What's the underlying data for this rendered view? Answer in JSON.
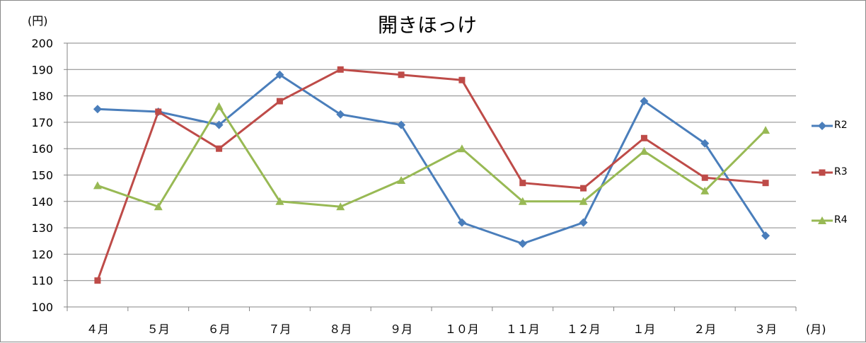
{
  "chart_data": {
    "type": "line",
    "title": "開きほっけ",
    "ylabel": "(円)",
    "xlabel": "(月)",
    "ylim": [
      100,
      200
    ],
    "yticks": [
      100,
      110,
      120,
      130,
      140,
      150,
      160,
      170,
      180,
      190,
      200
    ],
    "grid": true,
    "legend_position": "right",
    "categories": [
      "４月",
      "５月",
      "６月",
      "７月",
      "８月",
      "９月",
      "１０月",
      "１１月",
      "１２月",
      "１月",
      "２月",
      "３月"
    ],
    "series": [
      {
        "name": "R2",
        "color": "#4a7ebb",
        "marker": "diamond",
        "values": [
          175,
          174,
          169,
          188,
          173,
          169,
          132,
          124,
          132,
          178,
          162,
          127
        ]
      },
      {
        "name": "R3",
        "color": "#be4b48",
        "marker": "square",
        "values": [
          110,
          174,
          160,
          178,
          190,
          188,
          186,
          147,
          145,
          164,
          149,
          147
        ]
      },
      {
        "name": "R4",
        "color": "#98b954",
        "marker": "triangle",
        "values": [
          146,
          138,
          176,
          140,
          138,
          148,
          160,
          140,
          140,
          159,
          144,
          167
        ]
      }
    ]
  }
}
